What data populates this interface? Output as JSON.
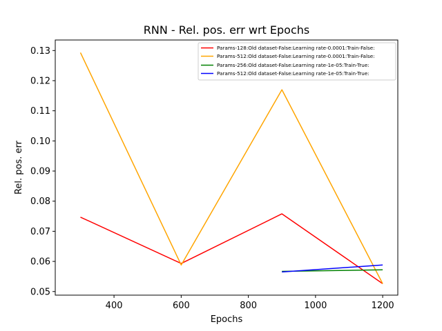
{
  "chart_data": {
    "type": "line",
    "title": "RNN - Rel. pos. err wrt Epochs",
    "xlabel": "Epochs",
    "ylabel": "Rel. pos. err",
    "xlim": [
      225,
      1245
    ],
    "ylim": [
      0.0488,
      0.1335
    ],
    "xticks": [
      400,
      600,
      800,
      1000,
      1200
    ],
    "yticks": [
      0.05,
      0.06,
      0.07,
      0.08,
      0.09,
      0.1,
      0.11,
      0.12,
      0.13
    ],
    "xtick_labels": [
      "400",
      "600",
      "800",
      "1000",
      "1200"
    ],
    "ytick_labels": [
      "0.05",
      "0.06",
      "0.07",
      "0.08",
      "0.09",
      "0.10",
      "0.11",
      "0.12",
      "0.13"
    ],
    "grid": false,
    "legend_position": "top-right",
    "series": [
      {
        "name": "Params-128:Old dataset-False:Learning rate-0.0001:Train-False:",
        "color": "#ff0000",
        "x": [
          300,
          600,
          900,
          1200
        ],
        "y": [
          0.0747,
          0.0593,
          0.0758,
          0.0526
        ]
      },
      {
        "name": "Params-512:Old dataset-False:Learning rate-0.0001:Train-False:",
        "color": "#ffa500",
        "x": [
          300,
          600,
          900,
          1200
        ],
        "y": [
          0.1293,
          0.0588,
          0.117,
          0.0526
        ]
      },
      {
        "name": "Params-256:Old dataset-False:Learning rate-1e-05:Train-True:",
        "color": "#008000",
        "x": [
          900,
          1200
        ],
        "y": [
          0.0567,
          0.0572
        ]
      },
      {
        "name": "Params-512:Old dataset-False:Learning rate-1e-05:Train-True:",
        "color": "#0000ff",
        "x": [
          900,
          1200
        ],
        "y": [
          0.0565,
          0.0588
        ]
      }
    ]
  }
}
